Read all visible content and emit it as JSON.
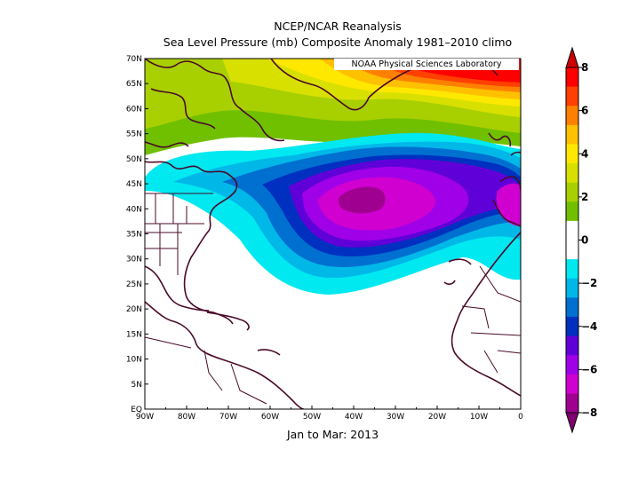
{
  "title_line1": "NCEP/NCAR Reanalysis",
  "title_line2": "Sea Level Pressure (mb) Composite Anomaly 1981–2010 climo",
  "credit": "NOAA Physical Sciences Laboratory",
  "caption": "Jan to Mar: 2013",
  "map": {
    "lon_range": [
      -90,
      0
    ],
    "lat_range": [
      0,
      70
    ],
    "lon_ticks": [
      "90W",
      "80W",
      "70W",
      "60W",
      "50W",
      "40W",
      "30W",
      "20W",
      "10W",
      "0"
    ],
    "lat_ticks": [
      "EQ",
      "5N",
      "10N",
      "15N",
      "20N",
      "25N",
      "30N",
      "35N",
      "40N",
      "45N",
      "50N",
      "55N",
      "60N",
      "65N",
      "70N"
    ]
  },
  "colorbar": {
    "labels": [
      "8",
      "6",
      "4",
      "2",
      "0",
      "−2",
      "−4",
      "−6",
      "−8"
    ],
    "bands": [
      "#ff0000",
      "#ff4000",
      "#ff8000",
      "#ffc000",
      "#ffe800",
      "#d8e000",
      "#a8d000",
      "#70c000",
      "#ffffff",
      "#ffffff",
      "#00e8f0",
      "#00b8e8",
      "#0070d0",
      "#0030c0",
      "#6000d8",
      "#a000e8",
      "#d000d0",
      "#a00090"
    ]
  },
  "chart_data": {
    "type": "heatmap",
    "variable": "Sea Level Pressure (mb) Composite Anomaly",
    "period": "Jan to Mar: 2013",
    "x_range": [
      -90,
      0
    ],
    "y_range": [
      0,
      70
    ],
    "color_range": [
      -8,
      8
    ],
    "features": [
      {
        "type": "low",
        "center_lon": -40,
        "center_lat": 41,
        "min_anomaly": -7
      },
      {
        "type": "high",
        "center_lon": -10,
        "center_lat": 67,
        "max_anomaly": 8
      }
    ]
  }
}
